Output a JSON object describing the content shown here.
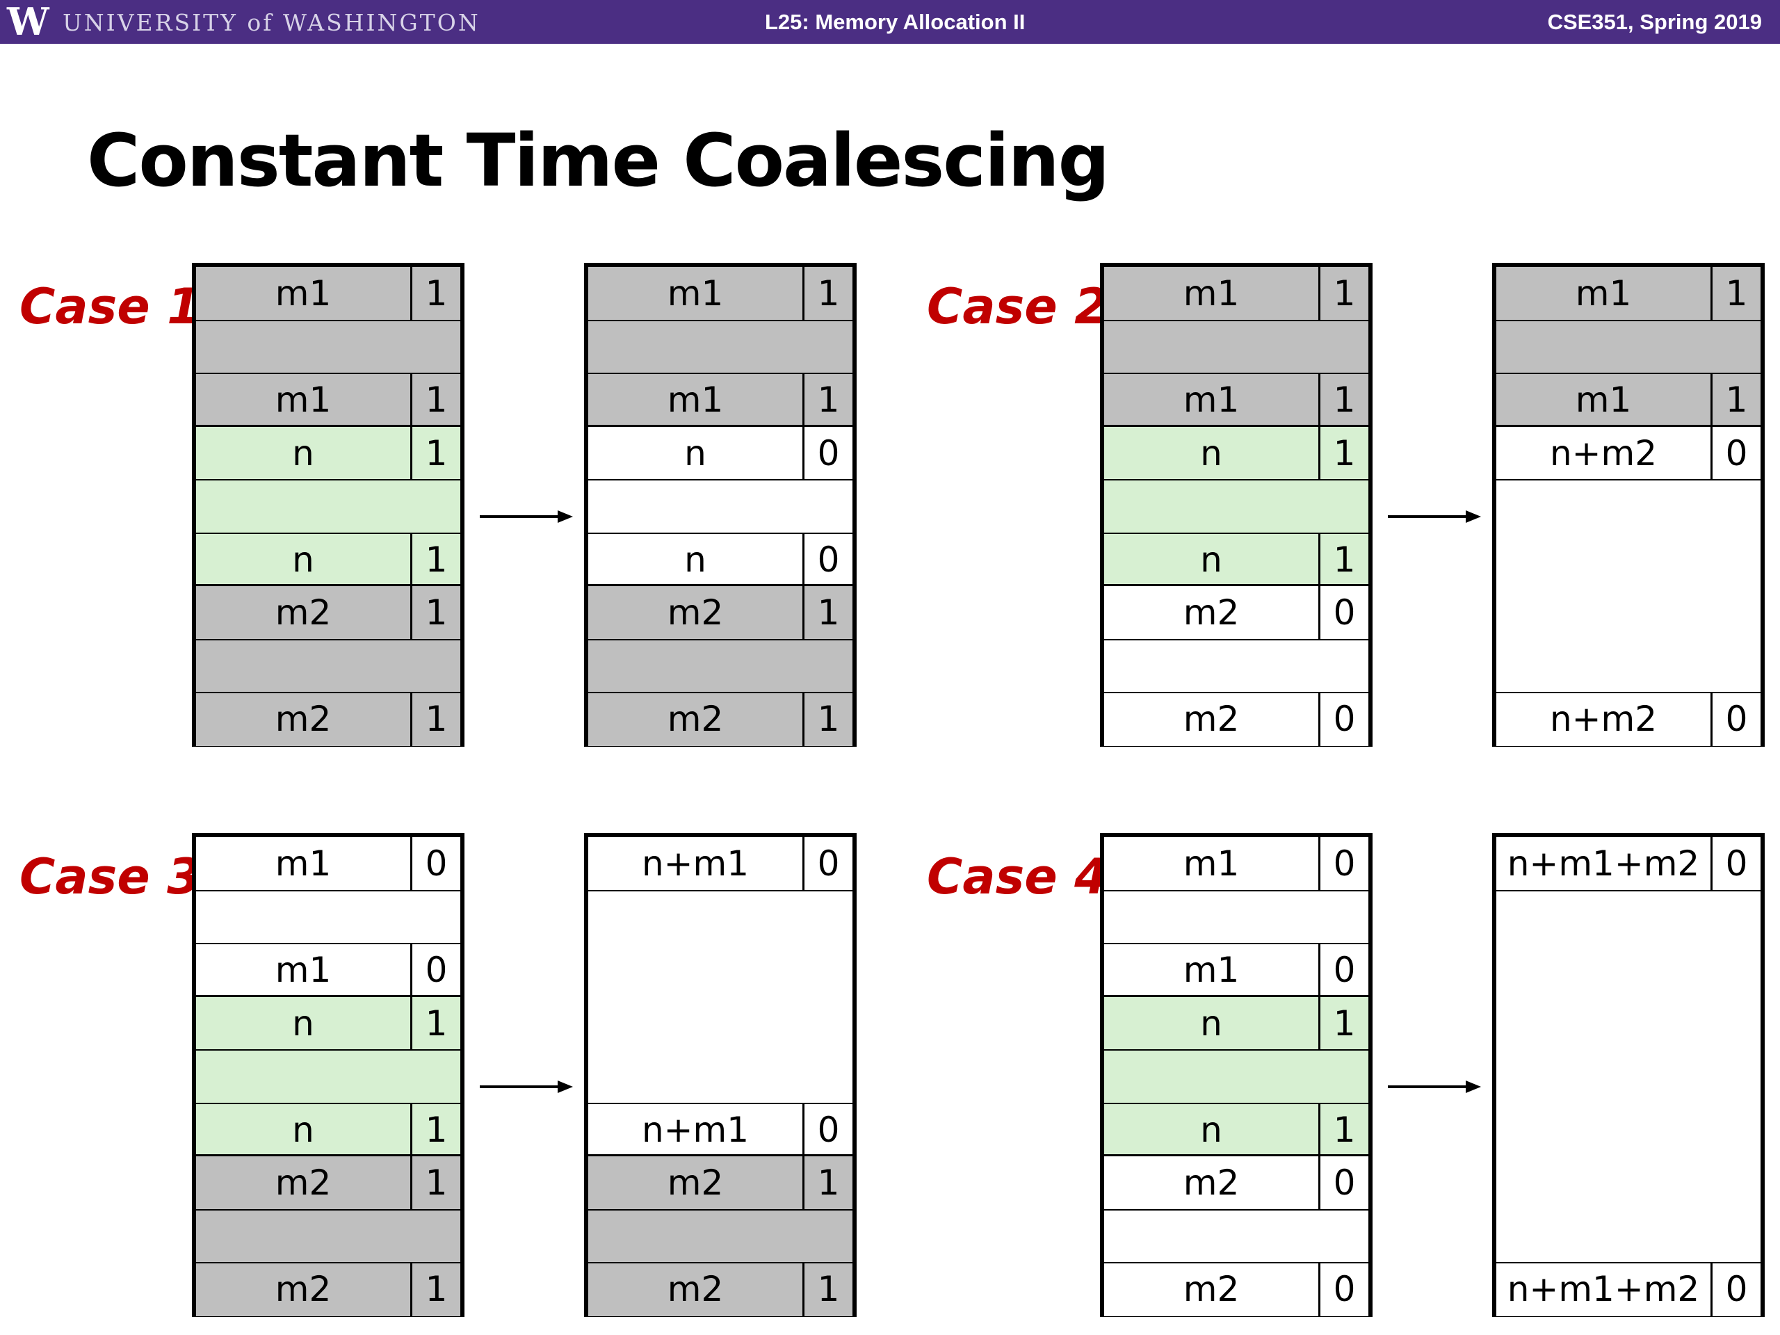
{
  "header": {
    "logo_letter": "W",
    "university": "UNIVERSITY of WASHINGTON",
    "lecture": "L25: Memory Allocation II",
    "course": "CSE351, Spring 2019"
  },
  "title": "Constant Time Coalescing",
  "colors": {
    "allocated": "#bfbfbf",
    "current": "#d7f0d2",
    "free": "#ffffff",
    "accent": "#c00000",
    "header": "#4b2e83"
  },
  "cases": [
    {
      "label": "Case 1",
      "before": [
        {
          "kind": "allocated",
          "tag": "m1",
          "bit": "1",
          "size": 3
        },
        {
          "kind": "current",
          "tag": "n",
          "bit": "1",
          "size": 3
        },
        {
          "kind": "allocated",
          "tag": "m2",
          "bit": "1",
          "size": 3
        }
      ],
      "after": [
        {
          "kind": "allocated",
          "tag": "m1",
          "bit": "1",
          "size": 3
        },
        {
          "kind": "free",
          "tag": "n",
          "bit": "0",
          "size": 3
        },
        {
          "kind": "allocated",
          "tag": "m2",
          "bit": "1",
          "size": 3
        }
      ]
    },
    {
      "label": "Case 2",
      "before": [
        {
          "kind": "allocated",
          "tag": "m1",
          "bit": "1",
          "size": 3
        },
        {
          "kind": "current",
          "tag": "n",
          "bit": "1",
          "size": 3
        },
        {
          "kind": "free",
          "tag": "m2",
          "bit": "0",
          "size": 3
        }
      ],
      "after": [
        {
          "kind": "allocated",
          "tag": "m1",
          "bit": "1",
          "size": 3
        },
        {
          "kind": "free",
          "tag": "n+m2",
          "bit": "0",
          "size": 6
        }
      ]
    },
    {
      "label": "Case 3",
      "before": [
        {
          "kind": "free",
          "tag": "m1",
          "bit": "0",
          "size": 3
        },
        {
          "kind": "current",
          "tag": "n",
          "bit": "1",
          "size": 3
        },
        {
          "kind": "allocated",
          "tag": "m2",
          "bit": "1",
          "size": 3
        }
      ],
      "after": [
        {
          "kind": "free",
          "tag": "n+m1",
          "bit": "0",
          "size": 6
        },
        {
          "kind": "allocated",
          "tag": "m2",
          "bit": "1",
          "size": 3
        }
      ]
    },
    {
      "label": "Case 4",
      "before": [
        {
          "kind": "free",
          "tag": "m1",
          "bit": "0",
          "size": 3
        },
        {
          "kind": "current",
          "tag": "n",
          "bit": "1",
          "size": 3
        },
        {
          "kind": "free",
          "tag": "m2",
          "bit": "0",
          "size": 3
        }
      ],
      "after": [
        {
          "kind": "free",
          "tag": "n+m1+m2",
          "bit": "0",
          "size": 9
        }
      ]
    }
  ]
}
